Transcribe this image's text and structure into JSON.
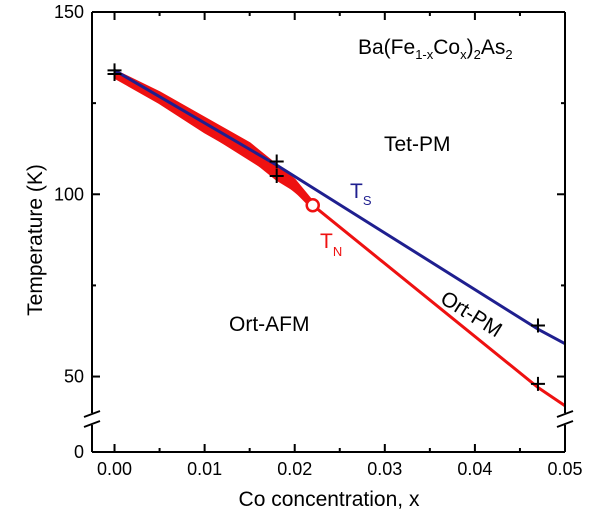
{
  "chart_data": {
    "type": "line",
    "title": "Ba(Fe1-xCox)2As2",
    "title_parts": {
      "base1": "Ba(Fe",
      "sub1": "1-x",
      "base2": "Co",
      "sub2": "x",
      "base3": ")",
      "sub3": "2",
      "base4": "As",
      "sub4": "2"
    },
    "xlabel": "Co concentration, x",
    "ylabel": "Temperature (K)",
    "xlim": [
      -0.0025,
      0.05
    ],
    "ylim": [
      0,
      150
    ],
    "y_axis_break": {
      "lower": [
        0,
        8
      ],
      "upper": [
        40,
        150
      ]
    },
    "x_ticks": [
      "0.00",
      "0.01",
      "0.02",
      "0.03",
      "0.04",
      "0.05"
    ],
    "x_tick_values": [
      0.0,
      0.01,
      0.02,
      0.03,
      0.04,
      0.05
    ],
    "y_ticks": [
      "0",
      "50",
      "100",
      "150"
    ],
    "y_tick_values": [
      0,
      50,
      100,
      150
    ],
    "grid": false,
    "series": [
      {
        "name": "T_S",
        "label_base": "T",
        "label_sub": "S",
        "color": "#1f1f8f",
        "x": [
          0.0,
          0.018,
          0.047,
          0.05
        ],
        "y": [
          134,
          108,
          63,
          59
        ]
      },
      {
        "name": "T_N",
        "label_base": "T",
        "label_sub": "N",
        "color": "#ee1111",
        "x": [
          0.0,
          0.018,
          0.022,
          0.047,
          0.05
        ],
        "y": [
          133,
          105,
          97,
          47,
          42
        ]
      }
    ],
    "band": {
      "color": "#ee1111",
      "x": [
        0.0,
        0.005,
        0.01,
        0.015,
        0.018,
        0.02,
        0.022
      ],
      "upper": [
        134,
        128,
        121,
        114,
        108,
        104,
        98
      ],
      "lower": [
        132,
        125,
        117,
        110,
        104,
        101,
        96
      ]
    },
    "cross_markers": [
      {
        "x": 0.0,
        "y": 134
      },
      {
        "x": 0.0,
        "y": 133
      },
      {
        "x": 0.018,
        "y": 109
      },
      {
        "x": 0.018,
        "y": 105
      },
      {
        "x": 0.047,
        "y": 64
      },
      {
        "x": 0.047,
        "y": 48
      }
    ],
    "open_circle": {
      "x": 0.022,
      "y": 97,
      "color": "#ee1111"
    },
    "region_labels": {
      "tet_pm": "Tet-PM",
      "ort_afm": "Ort-AFM",
      "ort_pm": "Ort-PM"
    }
  }
}
